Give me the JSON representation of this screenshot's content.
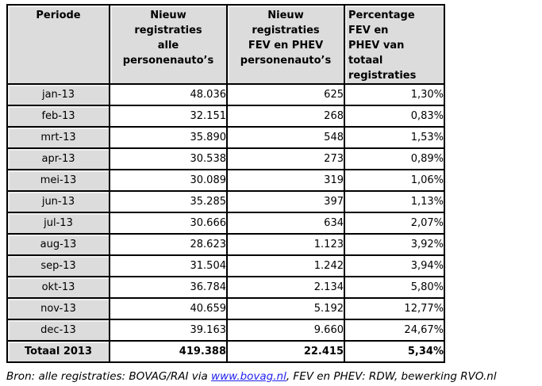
{
  "colors": {
    "cell_gray": "#dcdcdc",
    "border": "#000000",
    "link_blue": "#2222ee",
    "text": "#000000",
    "background": "#ffffff"
  },
  "table": {
    "headers": [
      {
        "label": "Periode"
      },
      {
        "label": "Nieuw\nregistraties\nalle\npersonenauto’s"
      },
      {
        "label": "Nieuw\nregistraties\nFEV en PHEV\npersonenauto’s"
      },
      {
        "label": "Percentage\nFEV en\nPHEV van\ntotaal\nregistraties"
      }
    ],
    "rows": [
      [
        "jan-13",
        "48.036",
        "625",
        "1,30%"
      ],
      [
        "feb-13",
        "32.151",
        "268",
        "0,83%"
      ],
      [
        "mrt-13",
        "35.890",
        "548",
        "1,53%"
      ],
      [
        "apr-13",
        "30.538",
        "273",
        "0,89%"
      ],
      [
        "mei-13",
        "30.089",
        "319",
        "1,06%"
      ],
      [
        "jun-13",
        "35.285",
        "397",
        "1,13%"
      ],
      [
        "jul-13",
        "30.666",
        "634",
        "2,07%"
      ],
      [
        "aug-13",
        "28.623",
        "1.123",
        "3,92%"
      ],
      [
        "sep-13",
        "31.504",
        "1.242",
        "3,94%"
      ],
      [
        "okt-13",
        "36.784",
        "2.134",
        "5,80%"
      ],
      [
        "nov-13",
        "40.659",
        "5.192",
        "12,77%"
      ],
      [
        "dec-13",
        "39.163",
        "9.660",
        "24,67%"
      ]
    ],
    "total_row": [
      "Totaal 2013",
      "419.388",
      "22.415",
      "5,34%"
    ]
  },
  "footer": {
    "prefix": "Bron: alle registraties: BOVAG/RAI via ",
    "link": "www.bovag.nl",
    "suffix": ", FEV en PHEV: RDW, bewerking RVO.nl"
  },
  "chart_data": {
    "type": "table",
    "columns": [
      "Periode",
      "Nieuw registraties alle personenauto’s",
      "Nieuw registraties FEV en PHEV personenauto’s",
      "Percentage FEV en PHEV van totaal registraties"
    ],
    "categories": [
      "jan-13",
      "feb-13",
      "mrt-13",
      "apr-13",
      "mei-13",
      "jun-13",
      "jul-13",
      "aug-13",
      "sep-13",
      "okt-13",
      "nov-13",
      "dec-13"
    ],
    "series": [
      {
        "name": "Nieuw registraties alle personenauto’s",
        "values": [
          48036,
          32151,
          35890,
          30538,
          30089,
          35285,
          30666,
          28623,
          31504,
          36784,
          40659,
          39163
        ]
      },
      {
        "name": "Nieuw registraties FEV en PHEV personenauto’s",
        "values": [
          625,
          268,
          548,
          273,
          319,
          397,
          634,
          1123,
          1242,
          2134,
          5192,
          9660
        ]
      },
      {
        "name": "Percentage FEV en PHEV van totaal registraties (%)",
        "values": [
          1.3,
          0.83,
          1.53,
          0.89,
          1.06,
          1.13,
          2.07,
          3.92,
          3.94,
          5.8,
          12.77,
          24.67
        ]
      }
    ],
    "totals": {
      "label": "Totaal 2013",
      "alle_personenautos": 419388,
      "fev_en_phev": 22415,
      "percentage": 5.34
    },
    "source": "Bron: alle registraties: BOVAG/RAI via www.bovag.nl, FEV en PHEV: RDW, bewerking RVO.nl"
  }
}
